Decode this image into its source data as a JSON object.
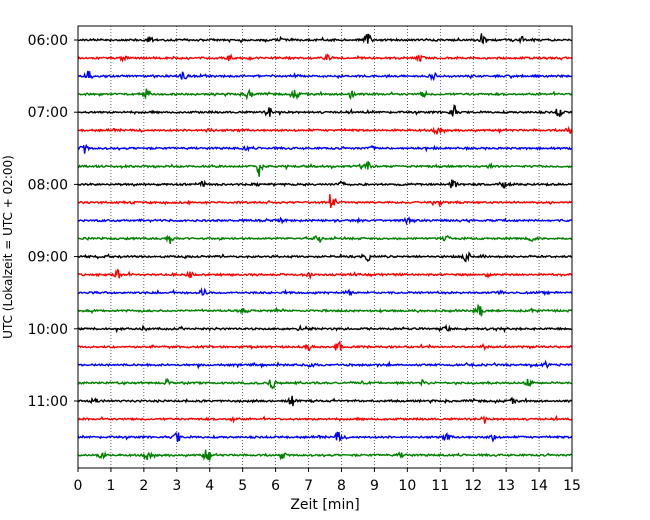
{
  "chart_data": {
    "type": "line",
    "title": "",
    "xlabel": "Zeit  [min]",
    "ylabel": "UTC (Lokalzeit = UTC + 02:00)",
    "xlim": [
      0,
      15
    ],
    "x_ticks": [
      "0",
      "1",
      "2",
      "3",
      "4",
      "5",
      "6",
      "7",
      "8",
      "9",
      "10",
      "11",
      "12",
      "13",
      "14",
      "15"
    ],
    "y_ticks": [
      "06:00",
      "07:00",
      "08:00",
      "09:00",
      "10:00",
      "11:00"
    ],
    "trace_interval_min": 15,
    "first_trace": "06:00",
    "trace_count": 24,
    "colors": [
      "#000000",
      "#ff0000",
      "#0000ff",
      "#008000"
    ],
    "grid": "vertical-dotted",
    "events": [
      [
        [
          2.2,
          0.5
        ],
        [
          6.1,
          0.4
        ],
        [
          8.8,
          1.0
        ],
        [
          12.3,
          0.8
        ],
        [
          13.5,
          0.4
        ]
      ],
      [
        [
          1.4,
          0.4
        ],
        [
          4.6,
          0.4
        ],
        [
          7.6,
          0.4
        ],
        [
          10.4,
          0.4
        ]
      ],
      [
        [
          0.3,
          0.9
        ],
        [
          3.2,
          0.6
        ],
        [
          6.6,
          0.4
        ],
        [
          10.8,
          0.4
        ]
      ],
      [
        [
          2.1,
          0.7
        ],
        [
          5.2,
          0.9
        ],
        [
          6.6,
          0.6
        ],
        [
          8.3,
          0.7
        ],
        [
          10.5,
          0.4
        ]
      ],
      [
        [
          5.8,
          0.8
        ],
        [
          11.4,
          1.0
        ],
        [
          14.6,
          0.7
        ]
      ],
      [
        [
          4.0,
          0.4
        ],
        [
          10.9,
          0.6
        ],
        [
          14.9,
          0.5
        ]
      ],
      [
        [
          0.2,
          0.7
        ],
        [
          5.1,
          0.3
        ],
        [
          8.9,
          0.3
        ]
      ],
      [
        [
          5.5,
          0.9
        ],
        [
          8.8,
          0.5
        ],
        [
          12.5,
          0.3
        ]
      ],
      [
        [
          3.8,
          0.4
        ],
        [
          8.0,
          0.5
        ],
        [
          11.4,
          0.9
        ],
        [
          12.9,
          0.5
        ]
      ],
      [
        [
          7.7,
          0.8
        ],
        [
          11.0,
          0.3
        ]
      ],
      [
        [
          6.2,
          0.3
        ],
        [
          10.0,
          0.3
        ]
      ],
      [
        [
          2.8,
          0.8
        ],
        [
          7.3,
          0.7
        ],
        [
          11.2,
          0.6
        ],
        [
          13.8,
          0.4
        ]
      ],
      [
        [
          8.8,
          0.5
        ],
        [
          11.8,
          0.9
        ]
      ],
      [
        [
          1.2,
          0.7
        ],
        [
          3.4,
          0.4
        ],
        [
          7.0,
          0.5
        ],
        [
          12.4,
          0.3
        ]
      ],
      [
        [
          3.8,
          0.5
        ],
        [
          8.2,
          0.3
        ],
        [
          12.8,
          0.3
        ]
      ],
      [
        [
          12.2,
          0.9
        ],
        [
          5.0,
          0.3
        ],
        [
          13.8,
          0.3
        ]
      ],
      [
        [
          2.0,
          0.3
        ],
        [
          6.7,
          0.3
        ],
        [
          11.2,
          0.4
        ]
      ],
      [
        [
          7.9,
          0.8
        ],
        [
          7.0,
          0.5
        ],
        [
          12.3,
          0.3
        ]
      ],
      [
        [
          7.1,
          0.4
        ],
        [
          14.2,
          0.4
        ]
      ],
      [
        [
          5.9,
          0.9
        ],
        [
          2.7,
          0.4
        ],
        [
          10.5,
          0.5
        ],
        [
          13.7,
          0.7
        ]
      ],
      [
        [
          0.5,
          0.5
        ],
        [
          6.5,
          0.8
        ],
        [
          13.2,
          0.3
        ]
      ],
      [
        [
          4.7,
          0.3
        ],
        [
          12.3,
          0.3
        ]
      ],
      [
        [
          3.0,
          0.9
        ],
        [
          7.9,
          0.7
        ],
        [
          11.2,
          0.4
        ],
        [
          12.6,
          0.5
        ]
      ],
      [
        [
          0.7,
          0.6
        ],
        [
          2.1,
          0.7
        ],
        [
          3.9,
          0.9
        ],
        [
          6.2,
          0.4
        ],
        [
          9.8,
          0.3
        ]
      ]
    ]
  }
}
